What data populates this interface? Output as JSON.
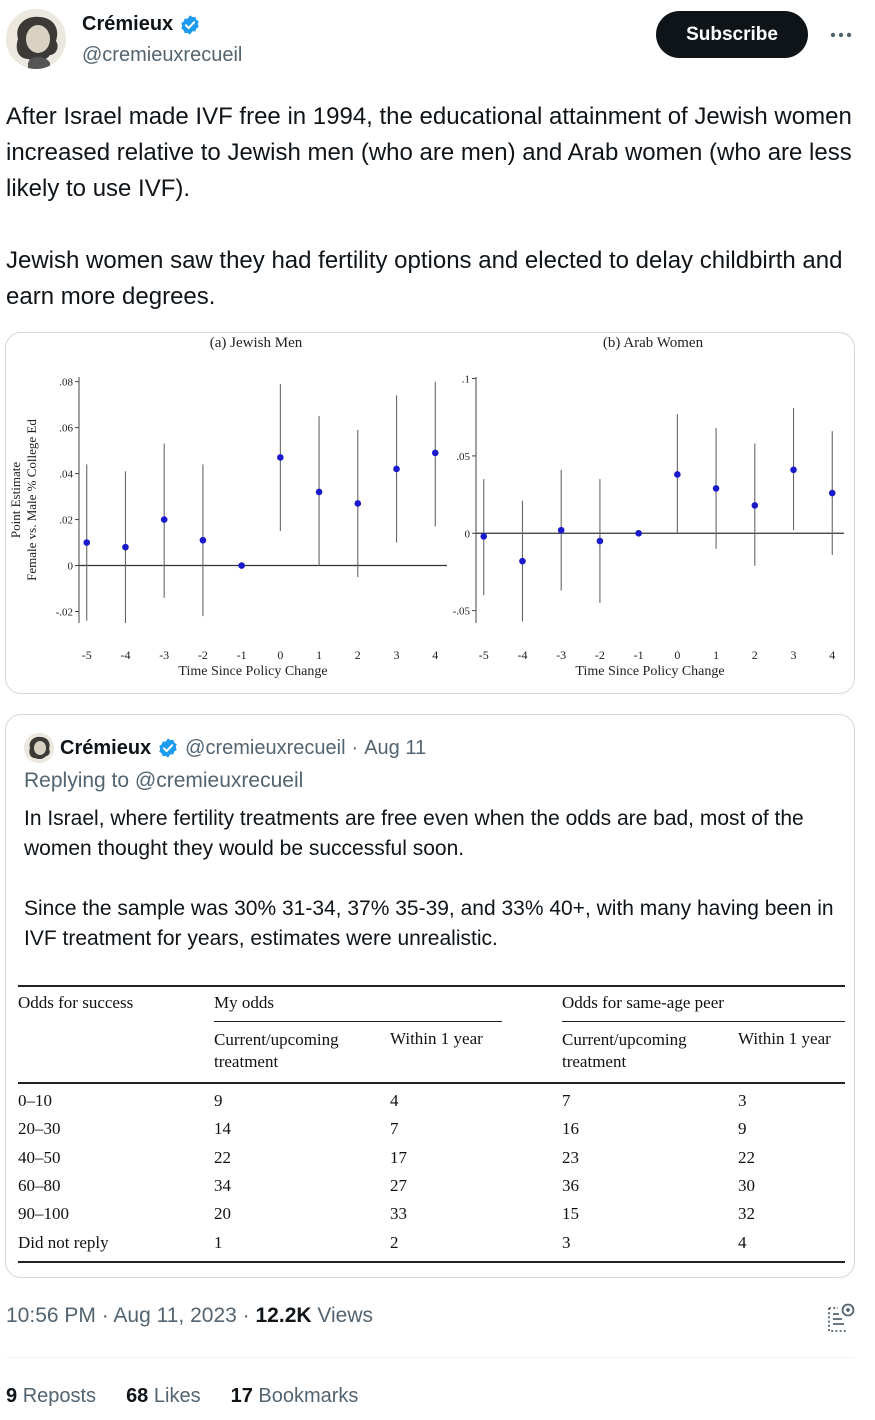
{
  "author": {
    "name": "Crémieux",
    "handle": "@cremieuxrecueil",
    "verified_icon": "verified-badge-icon",
    "verified_color": "#1d9bf0"
  },
  "header": {
    "subscribe_label": "Subscribe",
    "more_icon": "more-options-icon"
  },
  "tweet": {
    "paragraphs": [
      "After Israel made IVF free in 1994, the educational attainment of Jewish women increased relative to Jewish men (who are men) and Arab women (who are less likely to use IVF).",
      "Jewish women saw they had fertility options and elected to delay childbirth and earn more degrees."
    ]
  },
  "chart_data": [
    {
      "type": "scatter",
      "title": "(a) Jewish Men",
      "xlabel": "Time Since Policy Change",
      "ylabel": "Point Estimate\nFemale vs. Male % College Ed",
      "ylabel_lines": [
        "Point Estimate",
        "Female vs. Male % College Ed"
      ],
      "x": [
        -5,
        -4,
        -3,
        -2,
        -1,
        0,
        1,
        2,
        3,
        4
      ],
      "y": [
        0.01,
        0.008,
        0.02,
        0.011,
        0,
        0.047,
        0.032,
        0.027,
        0.042,
        0.049
      ],
      "ci_low": [
        -0.024,
        -0.025,
        -0.014,
        -0.022,
        0,
        0.015,
        0.0,
        -0.005,
        0.01,
        0.017
      ],
      "ci_high": [
        0.044,
        0.041,
        0.053,
        0.044,
        0,
        0.079,
        0.065,
        0.059,
        0.074,
        0.08
      ],
      "xlim": [
        -5.2,
        4.2
      ],
      "ylim": [
        -0.025,
        0.082
      ],
      "xticks": [
        "-5",
        "-4",
        "-3",
        "-2",
        "-1",
        "0",
        "1",
        "2",
        "3",
        "4"
      ],
      "yticks": [
        {
          "v": -0.02,
          "label": "-.02"
        },
        {
          "v": 0,
          "label": "0"
        },
        {
          "v": 0.02,
          "label": ".02"
        },
        {
          "v": 0.04,
          "label": ".04"
        },
        {
          "v": 0.06,
          "label": ".06"
        },
        {
          "v": 0.08,
          "label": ".08"
        }
      ],
      "point_color": "#1a1acc",
      "grid": false
    },
    {
      "type": "scatter",
      "title": "(b) Arab Women",
      "xlabel": "Time Since Policy Change",
      "ylabel": "",
      "ylabel_lines": [],
      "x": [
        -5,
        -4,
        -3,
        -2,
        -1,
        0,
        1,
        2,
        3,
        4
      ],
      "y": [
        -0.002,
        -0.018,
        0.002,
        -0.005,
        0,
        0.038,
        0.029,
        0.018,
        0.041,
        0.026
      ],
      "ci_low": [
        -0.04,
        -0.057,
        -0.037,
        -0.045,
        0,
        0.0,
        -0.01,
        -0.021,
        0.002,
        -0.014
      ],
      "ci_high": [
        0.035,
        0.021,
        0.041,
        0.035,
        0,
        0.077,
        0.068,
        0.058,
        0.081,
        0.066
      ],
      "xlim": [
        -5.2,
        4.2
      ],
      "ylim": [
        -0.058,
        0.101
      ],
      "xticks": [
        "-5",
        "-4",
        "-3",
        "-2",
        "-1",
        "0",
        "1",
        "2",
        "3",
        "4"
      ],
      "yticks": [
        {
          "v": -0.05,
          "label": "-.05"
        },
        {
          "v": 0,
          "label": "0"
        },
        {
          "v": 0.05,
          "label": ".05"
        },
        {
          "v": 0.1,
          "label": ".1"
        }
      ],
      "point_color": "#1a1acc",
      "grid": false
    }
  ],
  "quote": {
    "name": "Crémieux",
    "handle": "@cremieuxrecueil",
    "separator": "·",
    "date": "Aug 11",
    "reply_prefix": "Replying to",
    "reply_to": "@cremieuxrecueil",
    "paragraphs": [
      "In Israel, where fertility treatments are free even when the odds are bad, most of the women thought they would be successful soon.",
      "Since the sample was 30% 31-34, 37% 35-39, and 33% 40+, with many having been in IVF treatment for years, estimates were unrealistic."
    ],
    "table": {
      "col0_header": "Odds for success",
      "group1": "My odds",
      "group2": "Odds for same-age peer",
      "sub_current_line1": "Current/upcoming",
      "sub_current_line2": "treatment",
      "sub_within": "Within 1 year",
      "rows": [
        [
          "0–10",
          "9",
          "4",
          "7",
          "3"
        ],
        [
          "20–30",
          "14",
          "7",
          "16",
          "9"
        ],
        [
          "40–50",
          "22",
          "17",
          "23",
          "22"
        ],
        [
          "60–80",
          "34",
          "27",
          "36",
          "30"
        ],
        [
          "90–100",
          "20",
          "33",
          "15",
          "32"
        ],
        [
          "Did not reply",
          "1",
          "2",
          "3",
          "4"
        ]
      ]
    }
  },
  "footer": {
    "time": "10:56 PM",
    "separator": "·",
    "date": "Aug 11, 2023",
    "views_count": "12.2K",
    "views_label": "Views",
    "stats_icon": "analytics-icon",
    "reposts_count": "9",
    "reposts_label": "Reposts",
    "likes_count": "68",
    "likes_label": "Likes",
    "bookmarks_count": "17",
    "bookmarks_label": "Bookmarks"
  }
}
